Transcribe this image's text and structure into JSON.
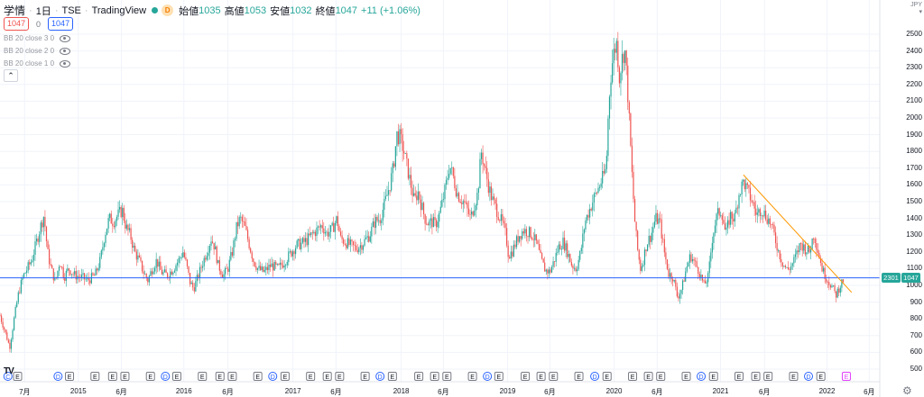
{
  "header": {
    "symbol": "学情",
    "interval": "1日",
    "exchange": "TSE",
    "source": "TradingView",
    "badge": "D",
    "open_label": "始値",
    "open": "1035",
    "high_label": "高値",
    "high": "1053",
    "low_label": "安値",
    "low": "1032",
    "close_label": "終値",
    "close": "1047",
    "change": "+11 (+1.06%)"
  },
  "trade": {
    "sell": "1047",
    "spread": "0",
    "buy": "1047"
  },
  "indicators": [
    "BB 20 close 3 0",
    "BB 20 close 2 0",
    "BB 20 close 1 0"
  ],
  "collapse_icon": "chevron-up-icon",
  "currency": [
    "JPY",
    "▾"
  ],
  "last_price_labels": {
    "left": "2301",
    "right": "1047"
  },
  "tv_logo": "TV",
  "settings_icon": "gear-icon",
  "colors": {
    "up": "#26a69a",
    "down": "#ef5350",
    "hline": "#2962ff",
    "trend": "#ff9800",
    "grid": "#f0f3fa"
  },
  "chart_data": {
    "type": "line",
    "title": "",
    "xlabel": "",
    "ylabel": "",
    "ylim": [
      450,
      2560
    ],
    "xlim": [
      0,
      1000
    ],
    "y_ticks": [
      500,
      600,
      700,
      800,
      900,
      1000,
      1100,
      1200,
      1300,
      1400,
      1500,
      1600,
      1700,
      1800,
      1900,
      2000,
      2100,
      2200,
      2300,
      2400,
      2500
    ],
    "x_ticks": [
      {
        "x": 28,
        "label": "7月"
      },
      {
        "x": 89,
        "label": "2015"
      },
      {
        "x": 138,
        "label": "6月"
      },
      {
        "x": 209,
        "label": "2016"
      },
      {
        "x": 259,
        "label": "6月"
      },
      {
        "x": 333,
        "label": "2017"
      },
      {
        "x": 382,
        "label": "6月"
      },
      {
        "x": 456,
        "label": "2018"
      },
      {
        "x": 504,
        "label": "6月"
      },
      {
        "x": 577,
        "label": "2019"
      },
      {
        "x": 625,
        "label": "6月"
      },
      {
        "x": 698,
        "label": "2020"
      },
      {
        "x": 747,
        "label": "6月"
      },
      {
        "x": 819,
        "label": "2021"
      },
      {
        "x": 869,
        "label": "6月"
      },
      {
        "x": 940,
        "label": "2022"
      },
      {
        "x": 988,
        "label": "6月"
      }
    ],
    "series": [
      {
        "values": [
          [
            0,
            820
          ],
          [
            6,
            720
          ],
          [
            11,
            630
          ],
          [
            16,
            800
          ],
          [
            21,
            950
          ],
          [
            26,
            1050
          ],
          [
            31,
            1100
          ],
          [
            36,
            1150
          ],
          [
            41,
            1250
          ],
          [
            46,
            1350
          ],
          [
            50,
            1420
          ],
          [
            54,
            1200
          ],
          [
            58,
            1100
          ],
          [
            63,
            1020
          ],
          [
            68,
            1150
          ],
          [
            73,
            1050
          ],
          [
            78,
            1100
          ],
          [
            85,
            1060
          ],
          [
            92,
            1050
          ],
          [
            100,
            1030
          ],
          [
            108,
            1060
          ],
          [
            114,
            1150
          ],
          [
            119,
            1300
          ],
          [
            124,
            1400
          ],
          [
            129,
            1380
          ],
          [
            134,
            1420
          ],
          [
            139,
            1450
          ],
          [
            143,
            1350
          ],
          [
            148,
            1300
          ],
          [
            153,
            1200
          ],
          [
            158,
            1150
          ],
          [
            163,
            1080
          ],
          [
            168,
            1030
          ],
          [
            173,
            1100
          ],
          [
            178,
            1150
          ],
          [
            183,
            1080
          ],
          [
            190,
            1060
          ],
          [
            197,
            1100
          ],
          [
            203,
            1150
          ],
          [
            208,
            1200
          ],
          [
            212,
            1120
          ],
          [
            216,
            1020
          ],
          [
            220,
            980
          ],
          [
            225,
            1050
          ],
          [
            230,
            1130
          ],
          [
            235,
            1200
          ],
          [
            240,
            1280
          ],
          [
            244,
            1230
          ],
          [
            248,
            1120
          ],
          [
            254,
            1060
          ],
          [
            259,
            1100
          ],
          [
            264,
            1200
          ],
          [
            269,
            1350
          ],
          [
            273,
            1400
          ],
          [
            278,
            1350
          ],
          [
            283,
            1250
          ],
          [
            288,
            1150
          ],
          [
            293,
            1100
          ],
          [
            300,
            1080
          ],
          [
            308,
            1120
          ],
          [
            316,
            1100
          ],
          [
            323,
            1140
          ],
          [
            330,
            1190
          ],
          [
            337,
            1240
          ],
          [
            343,
            1250
          ],
          [
            349,
            1270
          ],
          [
            354,
            1300
          ],
          [
            360,
            1330
          ],
          [
            366,
            1360
          ],
          [
            371,
            1310
          ],
          [
            377,
            1330
          ],
          [
            383,
            1400
          ],
          [
            387,
            1280
          ],
          [
            392,
            1260
          ],
          [
            398,
            1240
          ],
          [
            405,
            1220
          ],
          [
            412,
            1250
          ],
          [
            420,
            1300
          ],
          [
            426,
            1380
          ],
          [
            432,
            1400
          ],
          [
            438,
            1500
          ],
          [
            443,
            1600
          ],
          [
            447,
            1700
          ],
          [
            451,
            1900
          ],
          [
            455,
            1880
          ],
          [
            459,
            1800
          ],
          [
            463,
            1700
          ],
          [
            467,
            1600
          ],
          [
            471,
            1500
          ],
          [
            475,
            1560
          ],
          [
            479,
            1480
          ],
          [
            483,
            1400
          ],
          [
            487,
            1370
          ],
          [
            491,
            1380
          ],
          [
            495,
            1360
          ],
          [
            499,
            1420
          ],
          [
            503,
            1500
          ],
          [
            507,
            1600
          ],
          [
            511,
            1720
          ],
          [
            515,
            1650
          ],
          [
            519,
            1560
          ],
          [
            523,
            1520
          ],
          [
            527,
            1500
          ],
          [
            531,
            1450
          ],
          [
            535,
            1400
          ],
          [
            539,
            1480
          ],
          [
            543,
            1550
          ],
          [
            547,
            1800
          ],
          [
            551,
            1700
          ],
          [
            555,
            1600
          ],
          [
            559,
            1520
          ],
          [
            563,
            1470
          ],
          [
            567,
            1420
          ],
          [
            571,
            1370
          ],
          [
            575,
            1300
          ],
          [
            578,
            1180
          ],
          [
            582,
            1200
          ],
          [
            586,
            1250
          ],
          [
            590,
            1300
          ],
          [
            595,
            1330
          ],
          [
            600,
            1320
          ],
          [
            605,
            1300
          ],
          [
            610,
            1250
          ],
          [
            615,
            1150
          ],
          [
            620,
            1090
          ],
          [
            625,
            1080
          ],
          [
            630,
            1150
          ],
          [
            635,
            1230
          ],
          [
            640,
            1260
          ],
          [
            645,
            1200
          ],
          [
            650,
            1120
          ],
          [
            655,
            1100
          ],
          [
            660,
            1200
          ],
          [
            665,
            1380
          ],
          [
            670,
            1450
          ],
          [
            675,
            1520
          ],
          [
            680,
            1580
          ],
          [
            685,
            1640
          ],
          [
            689,
            1700
          ],
          [
            692,
            2100
          ],
          [
            695,
            2300
          ],
          [
            698,
            2400
          ],
          [
            701,
            2450
          ],
          [
            704,
            2250
          ],
          [
            707,
            2350
          ],
          [
            710,
            2420
          ],
          [
            713,
            2200
          ],
          [
            716,
            1900
          ],
          [
            719,
            1600
          ],
          [
            722,
            1350
          ],
          [
            725,
            1200
          ],
          [
            728,
            1100
          ],
          [
            731,
            1150
          ],
          [
            735,
            1250
          ],
          [
            740,
            1300
          ],
          [
            745,
            1400
          ],
          [
            750,
            1380
          ],
          [
            755,
            1200
          ],
          [
            760,
            1070
          ],
          [
            765,
            1050
          ],
          [
            770,
            930
          ],
          [
            775,
            980
          ],
          [
            780,
            1100
          ],
          [
            785,
            1180
          ],
          [
            790,
            1130
          ],
          [
            795,
            1080
          ],
          [
            800,
            1000
          ],
          [
            805,
            1050
          ],
          [
            810,
            1300
          ],
          [
            815,
            1420
          ],
          [
            820,
            1450
          ],
          [
            825,
            1300
          ],
          [
            830,
            1420
          ],
          [
            835,
            1400
          ],
          [
            840,
            1550
          ],
          [
            845,
            1620
          ],
          [
            850,
            1560
          ],
          [
            855,
            1500
          ],
          [
            860,
            1420
          ],
          [
            865,
            1460
          ],
          [
            870,
            1420
          ],
          [
            875,
            1380
          ],
          [
            880,
            1300
          ],
          [
            885,
            1200
          ],
          [
            890,
            1130
          ],
          [
            895,
            1090
          ],
          [
            900,
            1120
          ],
          [
            905,
            1180
          ],
          [
            910,
            1250
          ],
          [
            915,
            1220
          ],
          [
            920,
            1200
          ],
          [
            925,
            1310
          ],
          [
            930,
            1200
          ],
          [
            935,
            1090
          ],
          [
            940,
            1040
          ],
          [
            945,
            1000
          ],
          [
            950,
            940
          ],
          [
            955,
            1000
          ],
          [
            960,
            1047
          ]
        ]
      }
    ],
    "hline": {
      "y": 1045
    },
    "trendline": [
      [
        845,
        1660
      ],
      [
        968,
        958
      ]
    ],
    "event_markers": [
      {
        "x": 9,
        "type": "C"
      },
      {
        "x": 20,
        "type": "E"
      },
      {
        "x": 66,
        "type": "D"
      },
      {
        "x": 79,
        "type": "E"
      },
      {
        "x": 108,
        "type": "E"
      },
      {
        "x": 128,
        "type": "E"
      },
      {
        "x": 142,
        "type": "E"
      },
      {
        "x": 171,
        "type": "E"
      },
      {
        "x": 188,
        "type": "D"
      },
      {
        "x": 201,
        "type": "E"
      },
      {
        "x": 230,
        "type": "E"
      },
      {
        "x": 250,
        "type": "E"
      },
      {
        "x": 264,
        "type": "E"
      },
      {
        "x": 293,
        "type": "E"
      },
      {
        "x": 310,
        "type": "D"
      },
      {
        "x": 324,
        "type": "E"
      },
      {
        "x": 353,
        "type": "E"
      },
      {
        "x": 372,
        "type": "E"
      },
      {
        "x": 386,
        "type": "E"
      },
      {
        "x": 415,
        "type": "E"
      },
      {
        "x": 432,
        "type": "D"
      },
      {
        "x": 446,
        "type": "E"
      },
      {
        "x": 476,
        "type": "E"
      },
      {
        "x": 494,
        "type": "E"
      },
      {
        "x": 508,
        "type": "E"
      },
      {
        "x": 537,
        "type": "E"
      },
      {
        "x": 554,
        "type": "D"
      },
      {
        "x": 567,
        "type": "E"
      },
      {
        "x": 597,
        "type": "E"
      },
      {
        "x": 615,
        "type": "E"
      },
      {
        "x": 629,
        "type": "E"
      },
      {
        "x": 658,
        "type": "E"
      },
      {
        "x": 676,
        "type": "D"
      },
      {
        "x": 690,
        "type": "E"
      },
      {
        "x": 719,
        "type": "E"
      },
      {
        "x": 737,
        "type": "E"
      },
      {
        "x": 751,
        "type": "E"
      },
      {
        "x": 780,
        "type": "E"
      },
      {
        "x": 797,
        "type": "D"
      },
      {
        "x": 811,
        "type": "E"
      },
      {
        "x": 840,
        "type": "E"
      },
      {
        "x": 859,
        "type": "E"
      },
      {
        "x": 873,
        "type": "E"
      },
      {
        "x": 902,
        "type": "E"
      },
      {
        "x": 919,
        "type": "D"
      },
      {
        "x": 933,
        "type": "E"
      },
      {
        "x": 962,
        "type": "E"
      }
    ],
    "grid": true,
    "legend": "none"
  }
}
